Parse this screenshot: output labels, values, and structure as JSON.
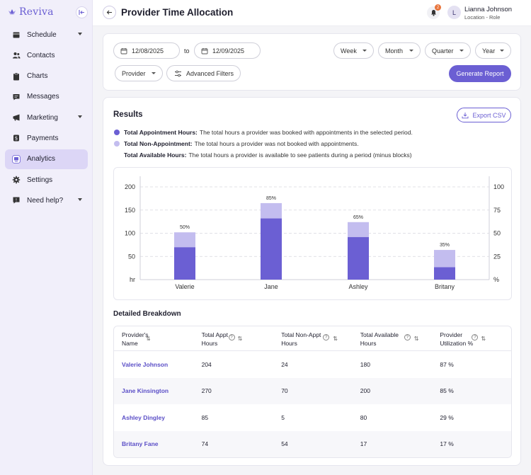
{
  "app": {
    "brand": "Reviva"
  },
  "sidebar": {
    "items": [
      {
        "label": "Schedule",
        "icon": "calendar-icon",
        "has_caret": true
      },
      {
        "label": "Contacts",
        "icon": "contacts-icon",
        "has_caret": false
      },
      {
        "label": "Charts",
        "icon": "clipboard-icon",
        "has_caret": false
      },
      {
        "label": "Messages",
        "icon": "message-icon",
        "has_caret": false
      },
      {
        "label": "Marketing",
        "icon": "megaphone-icon",
        "has_caret": true
      },
      {
        "label": "Payments",
        "icon": "dollar-icon",
        "has_caret": false
      },
      {
        "label": "Analytics",
        "icon": "analytics-icon",
        "has_caret": false,
        "active": true
      },
      {
        "label": "Settings",
        "icon": "gear-icon",
        "has_caret": false
      },
      {
        "label": "Need help?",
        "icon": "help-icon",
        "has_caret": true
      }
    ]
  },
  "header": {
    "title": "Provider Time Allocation",
    "notification_count": "2",
    "user": {
      "initial": "L",
      "name": "Lianna Johnson",
      "role": "Location - Role"
    }
  },
  "filters": {
    "start_date": "12/08/2025",
    "to_label": "to",
    "end_date": "12/09/2025",
    "periods": [
      "Week",
      "Month",
      "Quarter",
      "Year"
    ],
    "provider_label": "Provider",
    "advanced_label": "Advanced Filters",
    "generate_label": "Generate Report"
  },
  "results": {
    "title": "Results",
    "export_label": "Export CSV",
    "legend": [
      {
        "term": "Total Appointment Hours:",
        "desc": "The total hours a provider was booked with appointments in the selected period.",
        "color": "#6b5fd3"
      },
      {
        "term": "Total Non-Appointment:",
        "desc": "The total hours a provider was not booked with appointments.",
        "color": "#c3bdef"
      },
      {
        "term": "Total Available Hours:",
        "desc": "The total hours a provider is available to see patients during a period (minus blocks)",
        "color": ""
      }
    ]
  },
  "chart_data": {
    "type": "bar",
    "stacked": true,
    "categories": [
      "Valerie",
      "Jane",
      "Ashley",
      "Britany"
    ],
    "series": [
      {
        "values": [
          70,
          132,
          92,
          27
        ],
        "color": "#6b5fd3"
      },
      {
        "values": [
          32,
          33,
          32,
          37
        ],
        "color": "#c3bdef"
      }
    ],
    "data_labels": [
      "50%",
      "85%",
      "65%",
      "35%"
    ],
    "y_ticks_left": [
      "200",
      "150",
      "100",
      "50"
    ],
    "y_unit_left": "hr",
    "ylim_left": [
      0,
      200
    ],
    "y_ticks_right": [
      "100",
      "75",
      "50",
      "25"
    ],
    "y_unit_right": "%",
    "ylim_right": [
      0,
      100
    ],
    "grid": true
  },
  "breakdown": {
    "title": "Detailed Breakdown",
    "columns": [
      {
        "line1": "Provider's",
        "line2": "Name",
        "info": false
      },
      {
        "line1": "Total Appt",
        "line2": "Hours",
        "info": true
      },
      {
        "line1": "Total Non-Appt",
        "line2": "Hours",
        "info": true
      },
      {
        "line1": "Total Available",
        "line2": "Hours",
        "info": true
      },
      {
        "line1": "Provider",
        "line2": "Utilization %",
        "info": true
      }
    ],
    "rows": [
      [
        "Valerie Johnson",
        "204",
        "24",
        "180",
        "87 %"
      ],
      [
        "Jane Kinsington",
        "270",
        "70",
        "200",
        "85 %"
      ],
      [
        "Ashley Dingley",
        "85",
        "5",
        "80",
        "29 %"
      ],
      [
        "Britany Fane",
        "74",
        "54",
        "17",
        "17 %"
      ]
    ]
  }
}
